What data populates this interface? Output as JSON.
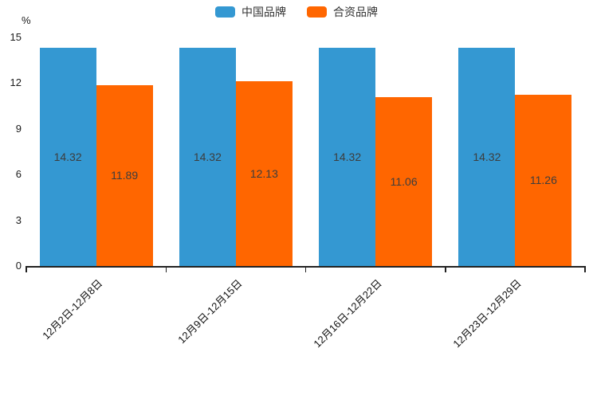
{
  "chart_data": {
    "type": "bar",
    "title": "",
    "y_unit": "%",
    "categories": [
      "12月2日-12月8日",
      "12月9日-12月15日",
      "12月16日-12月22日",
      "12月23日-12月29日"
    ],
    "series": [
      {
        "name": "中国品牌",
        "color": "#3498d2",
        "values": [
          14.32,
          14.32,
          14.32,
          14.32
        ]
      },
      {
        "name": "合资品牌",
        "color": "#ff6600",
        "values": [
          11.89,
          12.13,
          11.06,
          11.26
        ]
      }
    ],
    "ylim": [
      0,
      15
    ],
    "yticks": [
      0,
      3,
      6,
      9,
      12,
      15
    ],
    "grid": false,
    "legend_position": "top-center",
    "x_label_rotation": 45,
    "value_labels": true,
    "value_label_color": "#3d3d3d",
    "axis_color": "#222222"
  }
}
